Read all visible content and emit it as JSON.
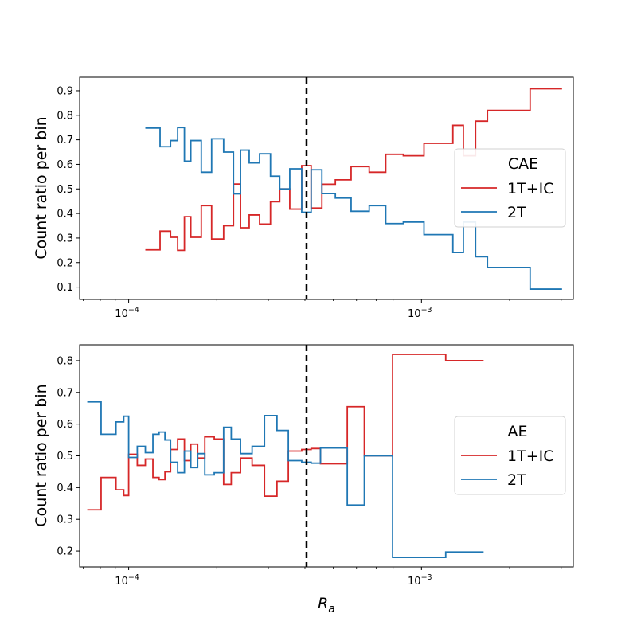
{
  "chart_data": [
    {
      "type": "step",
      "panel": "top",
      "xscale": "log",
      "xlim": [
        6.8e-05,
        0.0033
      ],
      "ylim": [
        0.05,
        0.955
      ],
      "ylabel": "Count ratio per bin",
      "xlabel": "",
      "yticks": [
        0.1,
        0.2,
        0.3,
        0.4,
        0.5,
        0.6,
        0.7,
        0.8,
        0.9
      ],
      "ytick_labels": [
        "0.1",
        "0.2",
        "0.3",
        "0.4",
        "0.5",
        "0.6",
        "0.7",
        "0.8",
        "0.9"
      ],
      "xticks": [
        0.0001,
        0.001
      ],
      "xtick_base": "10",
      "xtick_exponents": [
        "−4",
        "−3"
      ],
      "vline_x": 0.000405,
      "legend": {
        "title": "CAE",
        "position": "center-right"
      },
      "bin_edges": [
        0.000114,
        0.000128,
        0.000139,
        0.000147,
        0.000155,
        0.000163,
        0.000177,
        0.000192,
        0.000211,
        0.000228,
        0.000241,
        0.000258,
        0.00028,
        0.000305,
        0.000328,
        0.000355,
        0.00039,
        0.00042,
        0.000457,
        0.000508,
        0.000575,
        0.000663,
        0.000755,
        0.000867,
        0.00102,
        0.00128,
        0.00139,
        0.00153,
        0.00168,
        0.00183,
        0.00235,
        0.00302
      ],
      "series": [
        {
          "name": "1T+IC",
          "color": "#d62728",
          "values": [
            0.252,
            0.328,
            0.303,
            0.25,
            0.387,
            0.303,
            0.432,
            0.296,
            0.35,
            0.52,
            0.342,
            0.394,
            0.357,
            0.448,
            0.5,
            0.418,
            0.595,
            0.422,
            0.519,
            0.537,
            0.591,
            0.568,
            0.641,
            0.635,
            0.686,
            0.759,
            0.635,
            0.776,
            0.82,
            0.82,
            0.908
          ]
        },
        {
          "name": "2T",
          "color": "#1f77b4",
          "values": [
            0.748,
            0.672,
            0.697,
            0.75,
            0.613,
            0.697,
            0.568,
            0.704,
            0.65,
            0.48,
            0.658,
            0.606,
            0.643,
            0.552,
            0.5,
            0.582,
            0.405,
            0.578,
            0.481,
            0.463,
            0.409,
            0.432,
            0.359,
            0.365,
            0.314,
            0.241,
            0.365,
            0.224,
            0.18,
            0.18,
            0.092
          ]
        }
      ]
    },
    {
      "type": "step",
      "panel": "bottom",
      "xscale": "log",
      "xlim": [
        6.8e-05,
        0.0033
      ],
      "ylim": [
        0.15,
        0.85
      ],
      "ylabel": "Count ratio per bin",
      "xlabel": "R",
      "xlabel_sub": "a",
      "yticks": [
        0.2,
        0.3,
        0.4,
        0.5,
        0.6,
        0.7,
        0.8
      ],
      "ytick_labels": [
        "0.2",
        "0.3",
        "0.4",
        "0.5",
        "0.6",
        "0.7",
        "0.8"
      ],
      "xticks": [
        0.0001,
        0.001
      ],
      "xtick_base": "10",
      "xtick_exponents": [
        "−4",
        "−3"
      ],
      "vline_x": 0.000405,
      "legend": {
        "title": "AE",
        "position": "center-right"
      },
      "bin_edges": [
        7.22e-05,
        8.05e-05,
        9.05e-05,
        9.62e-05,
        0.0001,
        0.000107,
        0.000114,
        0.000121,
        0.000127,
        0.000133,
        0.000139,
        0.000147,
        0.000155,
        0.000163,
        0.000172,
        0.000182,
        0.000196,
        0.000211,
        0.000224,
        0.000241,
        0.000264,
        0.000291,
        0.000321,
        0.000351,
        0.00039,
        0.00042,
        0.000452,
        0.000558,
        0.000638,
        0.000797,
        0.00121,
        0.00163
      ],
      "series": [
        {
          "name": "1T+IC",
          "color": "#d62728",
          "values": [
            0.33,
            0.432,
            0.393,
            0.375,
            0.505,
            0.47,
            0.49,
            0.432,
            0.425,
            0.45,
            0.52,
            0.553,
            0.485,
            0.537,
            0.493,
            0.56,
            0.553,
            0.41,
            0.447,
            0.493,
            0.47,
            0.373,
            0.42,
            0.515,
            0.52,
            0.523,
            0.475,
            0.655,
            0.5,
            0.82,
            0.8
          ]
        },
        {
          "name": "2T",
          "color": "#1f77b4",
          "values": [
            0.67,
            0.568,
            0.607,
            0.625,
            0.495,
            0.53,
            0.51,
            0.568,
            0.575,
            0.55,
            0.48,
            0.447,
            0.515,
            0.463,
            0.507,
            0.44,
            0.447,
            0.59,
            0.553,
            0.507,
            0.53,
            0.627,
            0.58,
            0.485,
            0.48,
            0.477,
            0.525,
            0.345,
            0.5,
            0.18,
            0.197
          ]
        }
      ]
    }
  ]
}
